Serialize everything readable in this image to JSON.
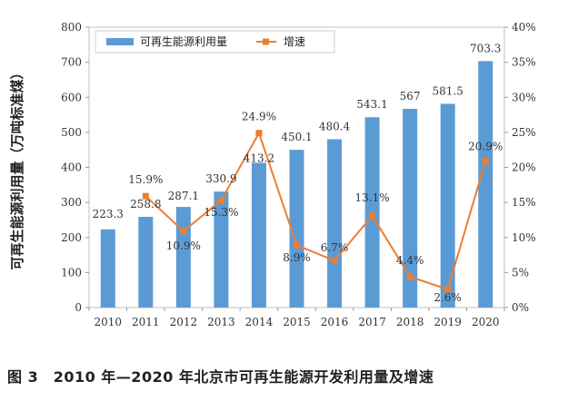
{
  "chart_data": {
    "type": "bar+line",
    "categories": [
      "2010",
      "2011",
      "2012",
      "2013",
      "2014",
      "2015",
      "2016",
      "2017",
      "2018",
      "2019",
      "2020"
    ],
    "series": [
      {
        "name": "可再生能源利用量",
        "type": "bar",
        "axis": "left",
        "values": [
          223.3,
          258.8,
          287.1,
          330.9,
          413.2,
          450.1,
          480.4,
          543.1,
          567,
          581.5,
          703.3
        ],
        "labels": [
          "223.3",
          "258.8",
          "287.1",
          "330.9",
          "413.2",
          "450.1",
          "480.4",
          "543.1",
          "567",
          "581.5",
          "703.3"
        ],
        "color": "#5B9BD5"
      },
      {
        "name": "增速",
        "type": "line",
        "axis": "right",
        "values": [
          null,
          15.9,
          10.9,
          15.3,
          24.9,
          8.9,
          6.7,
          13.1,
          4.4,
          2.6,
          20.9
        ],
        "labels": [
          "",
          "15.9%",
          "10.9%",
          "15.3%",
          "24.9%",
          "8.9%",
          "6.7%",
          "13.1%",
          "4.4%",
          "2.6%",
          "20.9%"
        ],
        "color": "#ED7D31"
      }
    ],
    "ylabel": "可再生能源利用量（万吨标准煤）",
    "ylim": [
      0,
      800
    ],
    "yticks": [
      "0",
      "100",
      "200",
      "300",
      "400",
      "500",
      "600",
      "700",
      "800"
    ],
    "y2lim": [
      0,
      40
    ],
    "y2ticks": [
      "0%",
      "5%",
      "10%",
      "15%",
      "20%",
      "25%",
      "30%",
      "35%",
      "40%"
    ],
    "legend": "top-left inside plot"
  },
  "caption": "图 3　2010 年—2020 年北京市可再生能源开发利用量及增速"
}
